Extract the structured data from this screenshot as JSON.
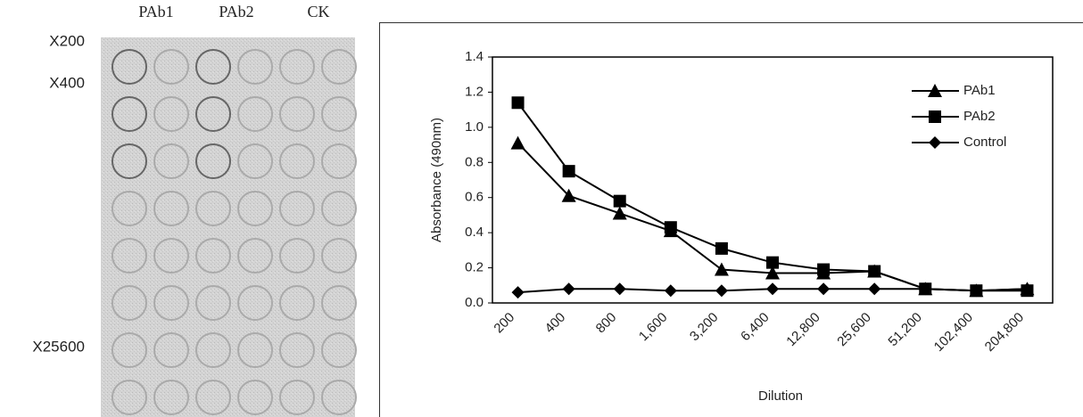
{
  "plate": {
    "column_labels": [
      "PAb1",
      "PAb2",
      "CK"
    ],
    "row_labels": [
      "X200",
      "X400",
      "X25600"
    ]
  },
  "chart_data": {
    "type": "line",
    "x_label": "Dilution",
    "y_label": "Absorbance (490nm)",
    "categories": [
      "200",
      "400",
      "800",
      "1,600",
      "3,200",
      "6,400",
      "12,800",
      "25,600",
      "51,200",
      "102,400",
      "204,800"
    ],
    "series": [
      {
        "name": "PAb1",
        "color": "#000000",
        "marker": "triangle",
        "values": [
          0.91,
          0.61,
          0.51,
          0.41,
          0.19,
          0.17,
          0.17,
          0.18,
          0.08,
          0.07,
          0.08
        ]
      },
      {
        "name": "PAb2",
        "color": "#000000",
        "marker": "square",
        "values": [
          1.14,
          0.75,
          0.58,
          0.43,
          0.31,
          0.23,
          0.19,
          0.18,
          0.08,
          0.07,
          0.07
        ]
      },
      {
        "name": "Control",
        "color": "#000000",
        "marker": "diamond",
        "values": [
          0.06,
          0.08,
          0.08,
          0.07,
          0.07,
          0.08,
          0.08,
          0.08,
          0.08,
          0.07,
          0.08
        ]
      }
    ],
    "ylim": [
      0,
      1.4
    ],
    "yticks": [
      {
        "value": 0,
        "label": "0.0"
      },
      0.2,
      0.4,
      0.6,
      0.8,
      {
        "value": 1,
        "label": "1.0"
      },
      1.2,
      1.4
    ],
    "grid": false,
    "legend": "upper right"
  }
}
